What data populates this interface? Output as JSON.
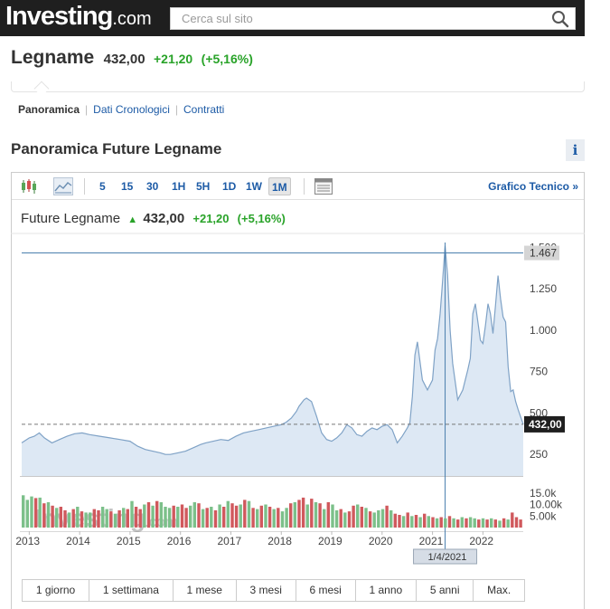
{
  "header": {
    "logo_main": "Investing",
    "logo_dot": ".com",
    "search_placeholder": "Cerca sul sito"
  },
  "quote": {
    "name": "Legname",
    "price": "432,00",
    "change": "+21,20",
    "change_pct": "(+5,16%)"
  },
  "subnav": {
    "items": [
      "Panoramica",
      "Dati Cronologici",
      "Contratti"
    ]
  },
  "section": {
    "title": "Panoramica Future Legname",
    "info": "i"
  },
  "toolbar": {
    "intervals": [
      "5",
      "15",
      "30",
      "1H",
      "5H",
      "1D",
      "1W",
      "1M"
    ],
    "active_interval": "1M",
    "tech_link": "Grafico Tecnico",
    "tech_arrow": "»"
  },
  "chart_header": {
    "name": "Future Legname",
    "arrow": "▲",
    "price": "432,00",
    "change": "+21,20",
    "change_pct": "(+5,16%)"
  },
  "periods": [
    "1 giorno",
    "1 settimana",
    "1 mese",
    "3 mesi",
    "6 mesi",
    "1 anno",
    "5 anni",
    "Max."
  ],
  "colors": {
    "up": "#29a329",
    "line": "#7fa2c6",
    "area": "#dde8f4",
    "vol_up": "#7cc08a",
    "vol_down": "#d0595d"
  },
  "chart_data": {
    "type": "area",
    "x_ticks": [
      "2013",
      "2014",
      "2015",
      "2016",
      "2017",
      "2018",
      "2019",
      "2020",
      "2021",
      "2022"
    ],
    "x_start": 2012.85,
    "x_end": 2022.8,
    "ylim": [
      120,
      1530
    ],
    "y_ticks": [
      {
        "value": 1500,
        "label": "1.500"
      },
      {
        "value": 1250,
        "label": "1.250"
      },
      {
        "value": 1000,
        "label": "1.000"
      },
      {
        "value": 750,
        "label": "750"
      },
      {
        "value": 500,
        "label": "500"
      },
      {
        "value": 250,
        "label": "250"
      }
    ],
    "series": [
      {
        "x": [
          2012.85,
          2013.0,
          2013.1,
          2013.2,
          2013.3,
          2013.45,
          2013.6,
          2013.75,
          2013.9,
          2014.05,
          2014.2,
          2014.4,
          2014.6,
          2014.8,
          2015.0,
          2015.15,
          2015.3,
          2015.45,
          2015.6,
          2015.7,
          2015.8,
          2015.95,
          2016.1,
          2016.25,
          2016.4,
          2016.5,
          2016.65,
          2016.8,
          2016.95,
          2017.1,
          2017.25,
          2017.4,
          2017.55,
          2017.7,
          2017.85,
          2018.0,
          2018.1,
          2018.2,
          2018.3,
          2018.35,
          2018.45,
          2018.5,
          2018.6,
          2018.7,
          2018.8,
          2018.9,
          2019.0,
          2019.1,
          2019.2,
          2019.3,
          2019.4,
          2019.5,
          2019.6,
          2019.7,
          2019.8,
          2019.9,
          2020.0,
          2020.1,
          2020.2,
          2020.3,
          2020.4,
          2020.5,
          2020.55,
          2020.6,
          2020.65,
          2020.7,
          2020.8,
          2020.9,
          2021.0,
          2021.05,
          2021.1,
          2021.15,
          2021.2,
          2021.25,
          2021.3,
          2021.35,
          2021.4,
          2021.5,
          2021.6,
          2021.7,
          2021.75,
          2021.8,
          2021.85,
          2021.9,
          2021.95,
          2022.0,
          2022.05,
          2022.1,
          2022.15,
          2022.2,
          2022.25,
          2022.3,
          2022.35,
          2022.4,
          2022.45,
          2022.5,
          2022.55,
          2022.6,
          2022.65,
          2022.7,
          2022.8
        ],
        "y": [
          320,
          350,
          360,
          380,
          350,
          320,
          340,
          360,
          375,
          380,
          370,
          360,
          350,
          340,
          330,
          300,
          280,
          270,
          260,
          250,
          250,
          260,
          270,
          290,
          310,
          320,
          330,
          340,
          335,
          360,
          380,
          390,
          400,
          410,
          420,
          430,
          445,
          470,
          510,
          540,
          580,
          590,
          570,
          480,
          380,
          340,
          330,
          350,
          380,
          430,
          410,
          370,
          360,
          390,
          410,
          400,
          420,
          430,
          400,
          320,
          360,
          410,
          440,
          600,
          850,
          930,
          700,
          640,
          700,
          880,
          950,
          1100,
          1300,
          1510,
          1330,
          1000,
          800,
          580,
          640,
          760,
          830,
          1100,
          1160,
          1050,
          940,
          920,
          1030,
          1160,
          1100,
          980,
          1150,
          1330,
          1190,
          1080,
          1050,
          780,
          630,
          640,
          570,
          520,
          432
        ]
      }
    ],
    "current_price": {
      "value": 432,
      "label": "432,00"
    },
    "crosshair": {
      "value": 1467,
      "label": "1.467",
      "date": "1/4/2021",
      "x": 2021.25
    },
    "volume": {
      "ylim": [
        0,
        20000
      ],
      "y_ticks": [
        {
          "value": 15000,
          "label": "15.0k"
        },
        {
          "value": 10000,
          "label": "10.00k"
        },
        {
          "value": 5000,
          "label": "5.00k"
        }
      ],
      "values": [
        14000,
        12000,
        13500,
        12800,
        13000,
        10500,
        11000,
        9500,
        8500,
        9000,
        7500,
        6500,
        8000,
        9000,
        7000,
        6500,
        6500,
        8000,
        7500,
        9000,
        8000,
        7000,
        6000,
        7500,
        8500,
        8000,
        11500,
        9000,
        8000,
        10000,
        11000,
        9500,
        11500,
        11000,
        9000,
        8500,
        9500,
        9000,
        10000,
        8500,
        9500,
        11000,
        10500,
        8000,
        8500,
        9000,
        7500,
        10000,
        9000,
        11500,
        10500,
        9500,
        10000,
        12000,
        11500,
        8500,
        8000,
        9500,
        10000,
        9000,
        8000,
        8500,
        7000,
        8500,
        10500,
        11000,
        12000,
        13000,
        10000,
        12500,
        11000,
        10500,
        8000,
        11000,
        10000,
        7500,
        8000,
        6500,
        7000,
        9500,
        10000,
        9000,
        8500,
        7000,
        6500,
        7500,
        8000,
        9500,
        7500,
        6000,
        5500,
        5000,
        6500,
        5000,
        5500,
        4500,
        6000,
        5000,
        4500,
        4000,
        4500,
        4000,
        5000,
        4000,
        3500,
        4500,
        4000,
        4500,
        4000,
        3500,
        4000,
        3500,
        4000,
        3500,
        3000,
        4000,
        3500,
        6500,
        4500,
        3500
      ],
      "colors": "gggrgrgrgrrgrgrggrrggrgrgrgrrgrgrgggrgrrggrgrgrgrgrrgrgrgrgrgrggrgrrgrgrgrggrgrrgrgrgggrgrrgrgrgrgrgrgrgrgrggrgrgrgrgr"
    }
  }
}
